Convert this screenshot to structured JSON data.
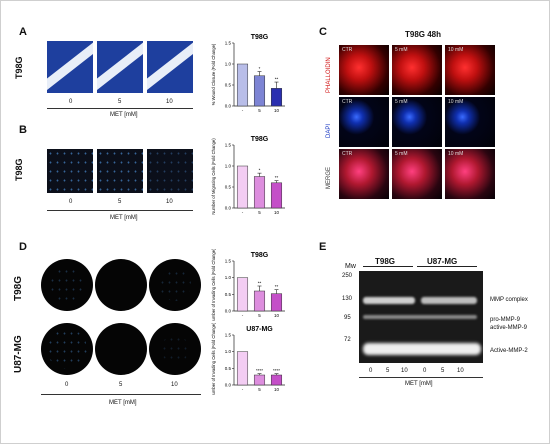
{
  "panels": {
    "A": "A",
    "B": "B",
    "C": "C",
    "D": "D",
    "E": "E"
  },
  "common": {
    "met_axis": "MET [mM]",
    "doses": [
      "0",
      "5",
      "10"
    ]
  },
  "panel_a": {
    "row_label": "T98G"
  },
  "panel_b": {
    "row_label": "T98G"
  },
  "panel_c": {
    "title": "T98G 48h",
    "conditions": [
      "CTR",
      "5 mM",
      "10 mM"
    ],
    "stains": [
      "PHALLOIDIN",
      "DAPI",
      "MERGE"
    ]
  },
  "panel_d": {
    "row_labels": [
      "T98G",
      "U87-MG"
    ]
  },
  "panel_e": {
    "mw_label": "Mw",
    "cell_lines": [
      "T98G",
      "U87-MG"
    ],
    "mw_markers": [
      "250",
      "130",
      "95",
      "72"
    ],
    "lanes": [
      "0",
      "5",
      "10",
      "0",
      "5",
      "10"
    ],
    "bands": [
      "MMP complex",
      "pro-MMP-9",
      "active-MMP-9",
      "Active-MMP-2"
    ]
  },
  "chart_data": [
    {
      "type": "bar",
      "title": "T98G",
      "ylabel": "% Wound Closure (Fold Change)",
      "categories": [
        "-",
        "5",
        "10"
      ],
      "values": [
        1.0,
        0.72,
        0.42
      ],
      "errors": [
        0.0,
        0.1,
        0.15
      ],
      "significance": [
        "",
        "*",
        "**"
      ],
      "ylim": [
        0,
        1.5
      ],
      "yticks": [
        "0.0",
        "0.5",
        "1.0",
        "1.5"
      ],
      "colors": [
        "#b8bde8",
        "#7d84d4",
        "#2a2fb0"
      ]
    },
    {
      "type": "bar",
      "title": "T98G",
      "ylabel": "Number of Migrating Cells (Fold Change)",
      "categories": [
        "-",
        "5",
        "10"
      ],
      "values": [
        1.0,
        0.75,
        0.6
      ],
      "errors": [
        0.0,
        0.08,
        0.05
      ],
      "significance": [
        "",
        "*",
        "**"
      ],
      "ylim": [
        0,
        1.5
      ],
      "yticks": [
        "0.0",
        "0.5",
        "1.0",
        "1.5"
      ],
      "colors": [
        "#f3cdf3",
        "#dd8ede",
        "#c44fc8"
      ]
    },
    {
      "type": "bar",
      "title": "T98G",
      "ylabel": "Number of Invading Cells (Fold Change)",
      "categories": [
        "-",
        "5",
        "10"
      ],
      "values": [
        1.0,
        0.6,
        0.52
      ],
      "errors": [
        0.0,
        0.15,
        0.12
      ],
      "significance": [
        "",
        "**",
        "**"
      ],
      "ylim": [
        0,
        1.5
      ],
      "yticks": [
        "0.0",
        "0.5",
        "1.0",
        "1.5"
      ],
      "colors": [
        "#f3cdf3",
        "#dd8ede",
        "#c44fc8"
      ]
    },
    {
      "type": "bar",
      "title": "U87-MG",
      "ylabel": "Number of Invading Cells (Fold Change)",
      "categories": [
        "-",
        "5",
        "10"
      ],
      "values": [
        1.0,
        0.3,
        0.3
      ],
      "errors": [
        0.0,
        0.04,
        0.04
      ],
      "significance": [
        "",
        "****",
        "****"
      ],
      "ylim": [
        0,
        1.5
      ],
      "yticks": [
        "0.0",
        "0.5",
        "1.0",
        "1.5"
      ],
      "colors": [
        "#f3cdf3",
        "#dd8ede",
        "#c44fc8"
      ]
    }
  ]
}
